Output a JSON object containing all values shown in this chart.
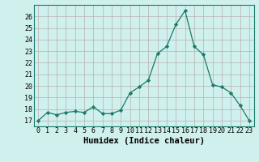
{
  "x": [
    0,
    1,
    2,
    3,
    4,
    5,
    6,
    7,
    8,
    9,
    10,
    11,
    12,
    13,
    14,
    15,
    16,
    17,
    18,
    19,
    20,
    21,
    22,
    23
  ],
  "y": [
    17.0,
    17.7,
    17.5,
    17.7,
    17.8,
    17.7,
    18.2,
    17.6,
    17.6,
    17.9,
    19.4,
    19.9,
    20.5,
    22.8,
    23.4,
    25.3,
    26.5,
    23.4,
    22.7,
    20.1,
    19.9,
    19.4,
    18.3,
    17.0
  ],
  "line_color": "#1a7a6a",
  "marker": "D",
  "marker_size": 2.2,
  "bg_color": "#cff0ec",
  "grid_color": "#b8b0b0",
  "xlabel": "Humidex (Indice chaleur)",
  "xlim": [
    -0.5,
    23.5
  ],
  "ylim": [
    16.5,
    27.0
  ],
  "yticks": [
    17,
    18,
    19,
    20,
    21,
    22,
    23,
    24,
    25,
    26
  ],
  "xticks": [
    0,
    1,
    2,
    3,
    4,
    5,
    6,
    7,
    8,
    9,
    10,
    11,
    12,
    13,
    14,
    15,
    16,
    17,
    18,
    19,
    20,
    21,
    22,
    23
  ],
  "tick_fontsize": 6,
  "xlabel_fontsize": 7.5,
  "spine_color": "#1a7a6a",
  "linewidth": 0.9
}
